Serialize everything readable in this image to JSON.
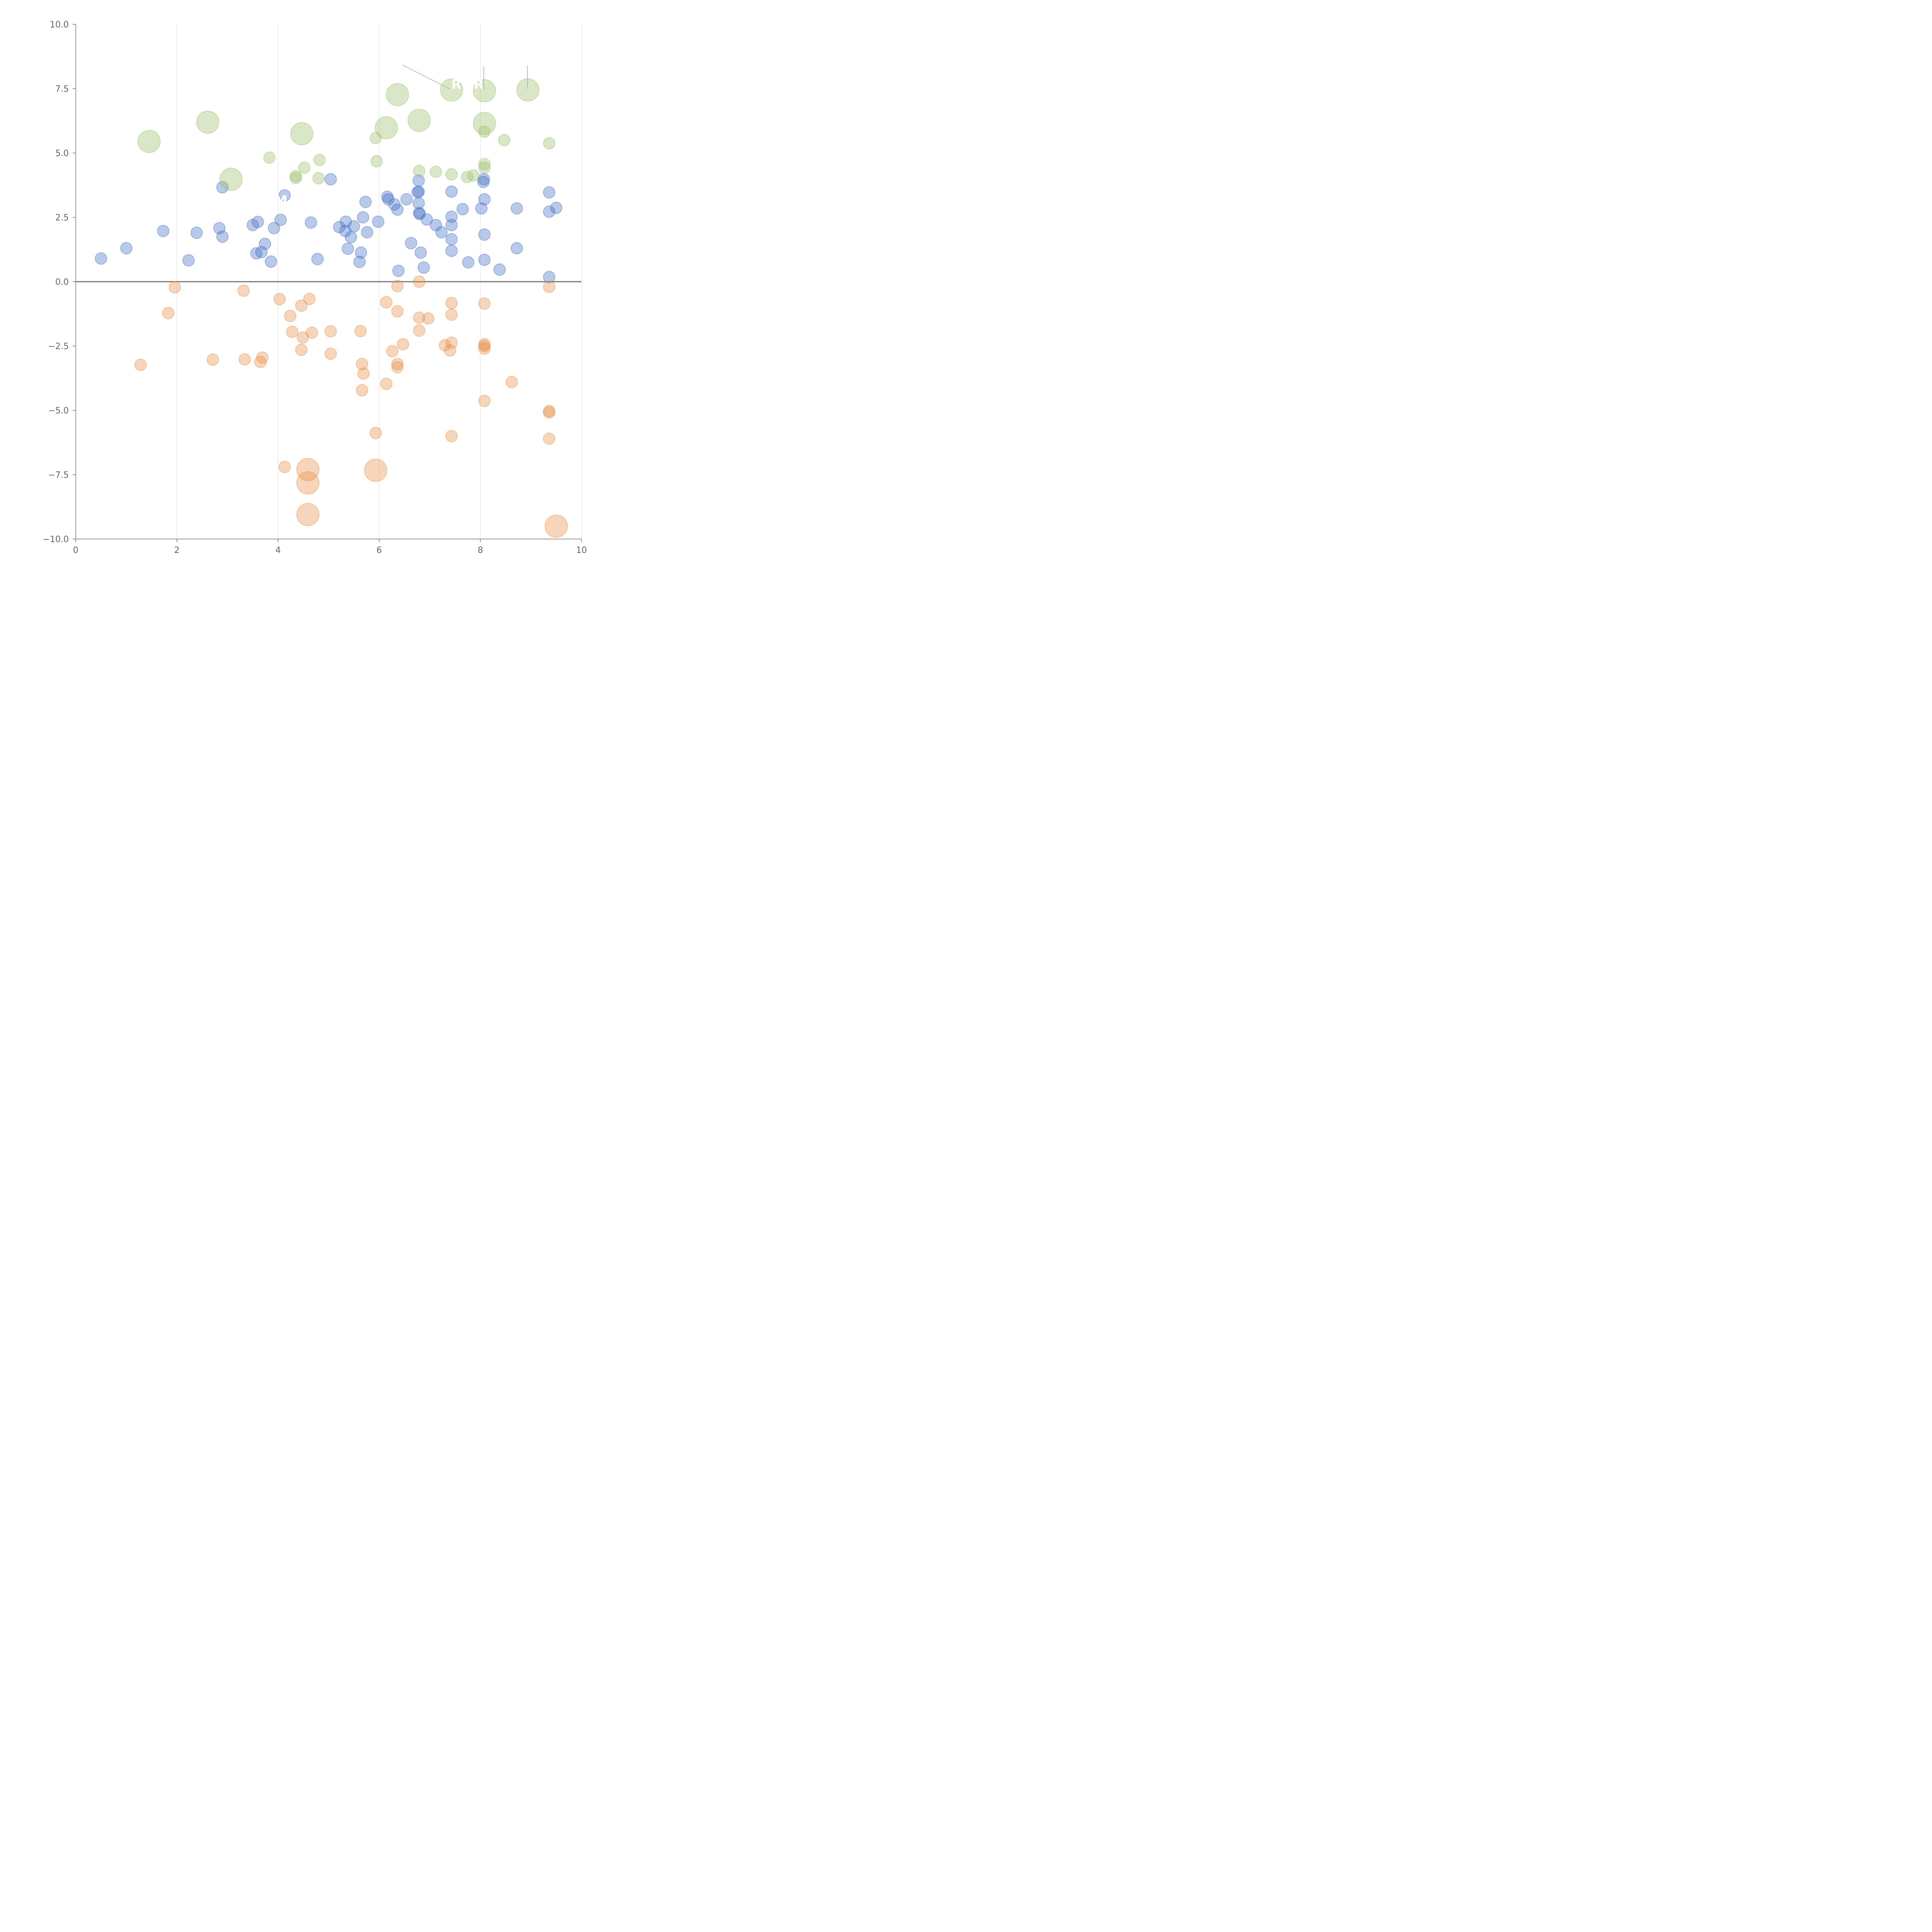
{
  "chart_data": {
    "type": "scatter",
    "title": "",
    "xlabel": "",
    "ylabel": "",
    "xlim": [
      0,
      10
    ],
    "ylim": [
      -10,
      10
    ],
    "xticks": [
      0,
      2,
      4,
      6,
      8,
      10
    ],
    "xtick_labels": [
      "0",
      "2",
      "4",
      "6",
      "8",
      "10"
    ],
    "yticks": [
      -10,
      -7.5,
      -5,
      -2.5,
      0,
      2.5,
      5,
      7.5,
      10
    ],
    "ytick_labels": [
      "−10.0",
      "−7.5",
      "−5.0",
      "−2.5",
      "0.0",
      "2.5",
      "5.0",
      "7.5",
      "10.0"
    ],
    "vertical_gridlines": true,
    "zero_line": true,
    "series": [
      {
        "name": "blue",
        "color": "#4472c4",
        "points": [
          {
            "x": 0.5,
            "y": 0.9
          },
          {
            "x": 1.0,
            "y": 1.3
          },
          {
            "x": 1.73,
            "y": 1.97
          },
          {
            "x": 2.23,
            "y": 0.83
          },
          {
            "x": 2.39,
            "y": 1.9
          },
          {
            "x": 2.84,
            "y": 2.08
          },
          {
            "x": 2.9,
            "y": 3.67
          },
          {
            "x": 2.9,
            "y": 1.75
          },
          {
            "x": 3.5,
            "y": 2.2
          },
          {
            "x": 3.6,
            "y": 2.32
          },
          {
            "x": 3.57,
            "y": 1.1
          },
          {
            "x": 3.67,
            "y": 1.15
          },
          {
            "x": 3.74,
            "y": 1.47
          },
          {
            "x": 3.86,
            "y": 0.78
          },
          {
            "x": 3.92,
            "y": 2.08
          },
          {
            "x": 4.05,
            "y": 2.4
          },
          {
            "x": 4.13,
            "y": 3.35
          },
          {
            "x": 4.65,
            "y": 2.3
          },
          {
            "x": 4.78,
            "y": 0.88
          },
          {
            "x": 5.04,
            "y": 3.98
          },
          {
            "x": 5.21,
            "y": 2.12
          },
          {
            "x": 5.34,
            "y": 2.33
          },
          {
            "x": 5.33,
            "y": 1.97
          },
          {
            "x": 5.38,
            "y": 1.28
          },
          {
            "x": 5.44,
            "y": 1.73
          },
          {
            "x": 5.5,
            "y": 2.15
          },
          {
            "x": 5.61,
            "y": 0.77
          },
          {
            "x": 5.64,
            "y": 1.13
          },
          {
            "x": 5.68,
            "y": 2.5
          },
          {
            "x": 5.73,
            "y": 3.1
          },
          {
            "x": 5.76,
            "y": 1.92
          },
          {
            "x": 5.98,
            "y": 2.33
          },
          {
            "x": 6.16,
            "y": 3.3
          },
          {
            "x": 6.18,
            "y": 3.2
          },
          {
            "x": 6.3,
            "y": 3.0
          },
          {
            "x": 6.36,
            "y": 2.8
          },
          {
            "x": 6.38,
            "y": 0.42
          },
          {
            "x": 6.54,
            "y": 3.2
          },
          {
            "x": 6.63,
            "y": 1.5
          },
          {
            "x": 6.76,
            "y": 3.48
          },
          {
            "x": 6.78,
            "y": 3.5
          },
          {
            "x": 6.78,
            "y": 3.93
          },
          {
            "x": 6.78,
            "y": 3.05
          },
          {
            "x": 6.79,
            "y": 2.67
          },
          {
            "x": 6.8,
            "y": 2.63
          },
          {
            "x": 6.82,
            "y": 1.13
          },
          {
            "x": 6.88,
            "y": 0.55
          },
          {
            "x": 6.94,
            "y": 2.42
          },
          {
            "x": 7.12,
            "y": 2.2
          },
          {
            "x": 7.23,
            "y": 1.92
          },
          {
            "x": 7.43,
            "y": 3.5
          },
          {
            "x": 7.43,
            "y": 2.52
          },
          {
            "x": 7.43,
            "y": 2.2
          },
          {
            "x": 7.43,
            "y": 1.65
          },
          {
            "x": 7.43,
            "y": 1.2
          },
          {
            "x": 7.65,
            "y": 2.82
          },
          {
            "x": 7.76,
            "y": 0.75
          },
          {
            "x": 8.02,
            "y": 2.85
          },
          {
            "x": 8.06,
            "y": 3.88
          },
          {
            "x": 8.07,
            "y": 3.98
          },
          {
            "x": 8.08,
            "y": 3.2
          },
          {
            "x": 8.08,
            "y": 1.83
          },
          {
            "x": 8.08,
            "y": 0.85
          },
          {
            "x": 8.38,
            "y": 0.47
          },
          {
            "x": 8.72,
            "y": 2.85
          },
          {
            "x": 8.72,
            "y": 1.3
          },
          {
            "x": 9.36,
            "y": 3.47
          },
          {
            "x": 9.36,
            "y": 2.72
          },
          {
            "x": 9.5,
            "y": 2.87
          },
          {
            "x": 9.36,
            "y": 0.18
          }
        ]
      },
      {
        "name": "orange",
        "color": "#e8904a",
        "points": [
          {
            "x": 1.28,
            "y": -3.23
          },
          {
            "x": 1.83,
            "y": -1.22
          },
          {
            "x": 1.96,
            "y": -0.22
          },
          {
            "x": 2.71,
            "y": -3.03
          },
          {
            "x": 3.32,
            "y": -0.35
          },
          {
            "x": 3.34,
            "y": -3.02
          },
          {
            "x": 3.65,
            "y": -3.12
          },
          {
            "x": 3.69,
            "y": -2.95
          },
          {
            "x": 4.03,
            "y": -0.68
          },
          {
            "x": 4.13,
            "y": -7.2
          },
          {
            "x": 4.24,
            "y": -1.33
          },
          {
            "x": 4.28,
            "y": -1.95
          },
          {
            "x": 4.46,
            "y": -0.93
          },
          {
            "x": 4.46,
            "y": -2.65
          },
          {
            "x": 4.49,
            "y": -2.17
          },
          {
            "x": 4.62,
            "y": -0.67
          },
          {
            "x": 4.67,
            "y": -1.98
          },
          {
            "x": 5.04,
            "y": -1.93
          },
          {
            "x": 5.04,
            "y": -2.8
          },
          {
            "x": 5.63,
            "y": -1.92
          },
          {
            "x": 5.66,
            "y": -3.2
          },
          {
            "x": 5.66,
            "y": -4.22
          },
          {
            "x": 5.69,
            "y": -3.57
          },
          {
            "x": 5.93,
            "y": -5.88
          },
          {
            "x": 6.14,
            "y": -0.8
          },
          {
            "x": 6.14,
            "y": -3.97
          },
          {
            "x": 6.26,
            "y": -2.7
          },
          {
            "x": 6.36,
            "y": -0.17
          },
          {
            "x": 6.36,
            "y": -1.15
          },
          {
            "x": 6.36,
            "y": -3.2
          },
          {
            "x": 6.36,
            "y": -3.32
          },
          {
            "x": 6.47,
            "y": -2.43
          },
          {
            "x": 6.79,
            "y": 0.0
          },
          {
            "x": 6.79,
            "y": -1.4
          },
          {
            "x": 6.79,
            "y": -1.9
          },
          {
            "x": 6.97,
            "y": -1.43
          },
          {
            "x": 7.3,
            "y": -2.47
          },
          {
            "x": 7.4,
            "y": -2.67
          },
          {
            "x": 7.43,
            "y": -0.83
          },
          {
            "x": 7.43,
            "y": -1.28
          },
          {
            "x": 7.43,
            "y": -2.37
          },
          {
            "x": 7.43,
            "y": -6.0
          },
          {
            "x": 8.08,
            "y": -0.85
          },
          {
            "x": 8.08,
            "y": -2.43
          },
          {
            "x": 8.08,
            "y": -2.5
          },
          {
            "x": 8.08,
            "y": -2.6
          },
          {
            "x": 8.08,
            "y": -4.63
          },
          {
            "x": 8.62,
            "y": -3.9
          },
          {
            "x": 9.36,
            "y": -0.2
          },
          {
            "x": 9.36,
            "y": -5.03
          },
          {
            "x": 9.36,
            "y": -5.08
          },
          {
            "x": 9.36,
            "y": -6.1
          }
        ]
      },
      {
        "name": "green",
        "color": "#9dc16b",
        "points": [
          {
            "x": 3.83,
            "y": 4.82
          },
          {
            "x": 4.35,
            "y": 4.1
          },
          {
            "x": 4.35,
            "y": 4.03
          },
          {
            "x": 4.52,
            "y": 4.43
          },
          {
            "x": 4.8,
            "y": 4.02
          },
          {
            "x": 4.82,
            "y": 4.73
          },
          {
            "x": 5.93,
            "y": 5.58
          },
          {
            "x": 5.95,
            "y": 4.68
          },
          {
            "x": 6.79,
            "y": 4.3
          },
          {
            "x": 7.12,
            "y": 4.27
          },
          {
            "x": 7.43,
            "y": 4.17
          },
          {
            "x": 7.74,
            "y": 4.07
          },
          {
            "x": 7.86,
            "y": 4.13
          },
          {
            "x": 8.08,
            "y": 5.83
          },
          {
            "x": 8.08,
            "y": 4.57
          },
          {
            "x": 8.08,
            "y": 4.43
          },
          {
            "x": 8.47,
            "y": 5.5
          },
          {
            "x": 9.36,
            "y": 5.38
          }
        ]
      },
      {
        "name": "green-large",
        "color": "#9dc16b",
        "points": [
          {
            "x": 1.45,
            "y": 5.45
          },
          {
            "x": 2.61,
            "y": 6.2
          },
          {
            "x": 3.07,
            "y": 3.98
          },
          {
            "x": 4.47,
            "y": 5.75
          },
          {
            "x": 6.14,
            "y": 5.98
          },
          {
            "x": 6.36,
            "y": 7.27
          },
          {
            "x": 6.79,
            "y": 6.27
          },
          {
            "x": 7.43,
            "y": 7.45
          },
          {
            "x": 8.08,
            "y": 7.42
          },
          {
            "x": 8.08,
            "y": 6.15
          },
          {
            "x": 8.94,
            "y": 7.45
          }
        ]
      },
      {
        "name": "orange-large",
        "color": "#e8904a",
        "points": [
          {
            "x": 4.59,
            "y": -7.3
          },
          {
            "x": 4.59,
            "y": -7.82
          },
          {
            "x": 4.59,
            "y": -9.05
          },
          {
            "x": 5.93,
            "y": -7.33
          },
          {
            "x": 9.5,
            "y": -9.5
          }
        ]
      }
    ],
    "annotations": [
      "M",
      "R",
      "R"
    ]
  }
}
